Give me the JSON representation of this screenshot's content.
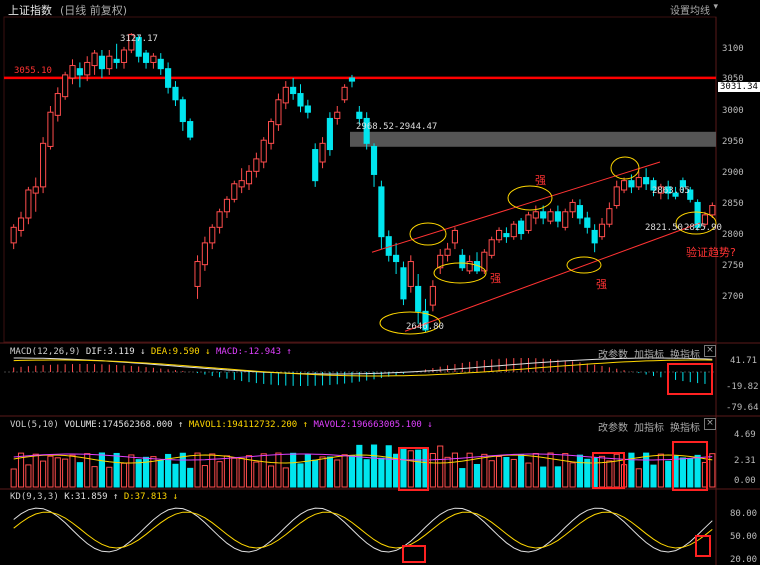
{
  "header": {
    "title": "上证指数",
    "subtitle": "(日线 前复权)",
    "settings": "设置均线",
    "settings_arrow": "▾"
  },
  "chart_data": [
    {
      "type": "candlestick",
      "price_axis": [
        3100.0,
        3050.0,
        3000.0,
        2950.0,
        2900.0,
        2850.0,
        2800.0,
        2750.0,
        2700.0
      ],
      "current_price": "3031.34",
      "hline": {
        "label": "3055.10",
        "value": 3055.1,
        "color": "#ff0000"
      },
      "gap_band": {
        "label": "2968.52-2944.47",
        "from": 2944.47,
        "to": 2968.52
      },
      "annotations": {
        "high": "3127.17",
        "low": "2646.80",
        "p2863": "2863.05",
        "p2821": "2821.50",
        "p2825": "2825.90",
        "qiang1": "强",
        "qiang2": "强",
        "qiang3": "强",
        "question": "验证趋势?"
      },
      "candles": [
        [
          2790,
          2815,
          2780,
          2820
        ],
        [
          2810,
          2830,
          2800,
          2840
        ],
        [
          2830,
          2875,
          2820,
          2880
        ],
        [
          2870,
          2880,
          2840,
          2895
        ],
        [
          2880,
          2950,
          2870,
          2960
        ],
        [
          2945,
          3000,
          2940,
          3010
        ],
        [
          2995,
          3030,
          2985,
          3040
        ],
        [
          3025,
          3060,
          3020,
          3065
        ],
        [
          3055,
          3075,
          3045,
          3085
        ],
        [
          3070,
          3060,
          3040,
          3080
        ],
        [
          3060,
          3080,
          3050,
          3090
        ],
        [
          3075,
          3095,
          3060,
          3100
        ],
        [
          3090,
          3070,
          3055,
          3100
        ],
        [
          3070,
          3090,
          3060,
          3100
        ],
        [
          3085,
          3080,
          3070,
          3110
        ],
        [
          3080,
          3100,
          3070,
          3105
        ],
        [
          3100,
          3125,
          3095,
          3127
        ],
        [
          3120,
          3090,
          3080,
          3125
        ],
        [
          3095,
          3080,
          3070,
          3100
        ],
        [
          3080,
          3090,
          3070,
          3095
        ],
        [
          3085,
          3070,
          3060,
          3095
        ],
        [
          3070,
          3040,
          3030,
          3080
        ],
        [
          3040,
          3020,
          3010,
          3050
        ],
        [
          3020,
          2985,
          2970,
          3025
        ],
        [
          2985,
          2960,
          2955,
          2990
        ],
        [
          2720,
          2760,
          2700,
          2770
        ],
        [
          2755,
          2790,
          2745,
          2800
        ],
        [
          2790,
          2815,
          2780,
          2820
        ],
        [
          2815,
          2840,
          2805,
          2845
        ],
        [
          2840,
          2860,
          2830,
          2865
        ],
        [
          2860,
          2885,
          2855,
          2890
        ],
        [
          2880,
          2890,
          2870,
          2910
        ],
        [
          2885,
          2905,
          2875,
          2915
        ],
        [
          2905,
          2925,
          2895,
          2935
        ],
        [
          2920,
          2955,
          2910,
          2960
        ],
        [
          2950,
          2985,
          2940,
          2990
        ],
        [
          2980,
          3020,
          2970,
          3030
        ],
        [
          3015,
          3040,
          3005,
          3050
        ],
        [
          3040,
          3030,
          3020,
          3055
        ],
        [
          3030,
          3010,
          3000,
          3045
        ],
        [
          3010,
          3000,
          2990,
          3020
        ],
        [
          2940,
          2890,
          2880,
          2950
        ],
        [
          2920,
          2950,
          2910,
          2960
        ],
        [
          2990,
          2940,
          2930,
          3000
        ],
        [
          2990,
          3000,
          2980,
          3010
        ],
        [
          3020,
          3040,
          3015,
          3045
        ],
        [
          3055,
          3050,
          3040,
          3060
        ],
        [
          3000,
          2990,
          2980,
          3010
        ],
        [
          2990,
          2950,
          2940,
          3000
        ],
        [
          2945,
          2900,
          2880,
          2950
        ],
        [
          2880,
          2800,
          2780,
          2890
        ],
        [
          2800,
          2770,
          2760,
          2810
        ],
        [
          2770,
          2760,
          2740,
          2790
        ],
        [
          2750,
          2700,
          2690,
          2760
        ],
        [
          2720,
          2760,
          2710,
          2770
        ],
        [
          2720,
          2680,
          2660,
          2740
        ],
        [
          2680,
          2650,
          2646.8,
          2700
        ],
        [
          2690,
          2720,
          2680,
          2730
        ],
        [
          2750,
          2770,
          2740,
          2780
        ],
        [
          2770,
          2780,
          2760,
          2790
        ],
        [
          2790,
          2810,
          2780,
          2815
        ],
        [
          2770,
          2750,
          2745,
          2780
        ],
        [
          2745,
          2760,
          2740,
          2770
        ],
        [
          2760,
          2745,
          2740,
          2775
        ],
        [
          2745,
          2775,
          2740,
          2780
        ],
        [
          2770,
          2795,
          2765,
          2800
        ],
        [
          2795,
          2810,
          2790,
          2815
        ],
        [
          2805,
          2800,
          2790,
          2815
        ],
        [
          2800,
          2820,
          2795,
          2825
        ],
        [
          2825,
          2805,
          2795,
          2830
        ],
        [
          2810,
          2835,
          2805,
          2840
        ],
        [
          2830,
          2840,
          2820,
          2850
        ],
        [
          2840,
          2830,
          2820,
          2850
        ],
        [
          2825,
          2840,
          2820,
          2845
        ],
        [
          2840,
          2825,
          2815,
          2850
        ],
        [
          2815,
          2840,
          2810,
          2845
        ],
        [
          2840,
          2855,
          2830,
          2860
        ],
        [
          2850,
          2830,
          2820,
          2860
        ],
        [
          2830,
          2815,
          2805,
          2840
        ],
        [
          2810,
          2790,
          2775,
          2820
        ],
        [
          2800,
          2820,
          2795,
          2830
        ],
        [
          2820,
          2845,
          2815,
          2855
        ],
        [
          2850,
          2880,
          2845,
          2890
        ],
        [
          2875,
          2890,
          2870,
          2895
        ],
        [
          2890,
          2880,
          2870,
          2900
        ],
        [
          2880,
          2895,
          2875,
          2905
        ],
        [
          2895,
          2885,
          2875,
          2910
        ],
        [
          2890,
          2875,
          2865,
          2895
        ],
        [
          2870,
          2880,
          2860,
          2885
        ],
        [
          2880,
          2870,
          2860,
          2890
        ],
        [
          2870,
          2865,
          2860,
          2880
        ],
        [
          2890,
          2880,
          2870,
          2895
        ],
        [
          2875,
          2860,
          2855,
          2880
        ],
        [
          2855,
          2815,
          2810,
          2860
        ],
        [
          2820,
          2835,
          2815,
          2840
        ],
        [
          2835,
          2850,
          2830,
          2855
        ]
      ]
    },
    {
      "type": "line",
      "label": "MACD(12,26,9)",
      "values_text": {
        "dif": "DIF:3.119",
        "dea": "DEA:9.590",
        "macd": "MACD:-12.943"
      },
      "arrows": {
        "down": "↓",
        "up": "↑"
      },
      "axis": [
        "41.71",
        "-19.82",
        "-79.64"
      ],
      "buttons": [
        "改参数",
        "加指标",
        "换指标"
      ]
    },
    {
      "type": "bar",
      "label": "VOL(5,10)",
      "values_text": {
        "volume": "VOLUME:174562368.000",
        "mavol1": "MAVOL1:194112732.200",
        "mavol2": "MAVOL2:196663005.100"
      },
      "axis": [
        "4.69",
        "2.31",
        "0.00"
      ],
      "buttons": [
        "改参数",
        "加指标",
        "换指标"
      ]
    },
    {
      "type": "line",
      "label": "KD(9,3,3)",
      "values_text": {
        "k": "K:31.859",
        "d": "D:37.813"
      },
      "axis": [
        "80.00",
        "50.00",
        "20.00"
      ]
    }
  ],
  "colors": {
    "up": "#ff4d4d",
    "down": "#00e5ee",
    "yellow": "#ffd700",
    "magenta": "#e040ff",
    "white": "#e0e0e0"
  }
}
